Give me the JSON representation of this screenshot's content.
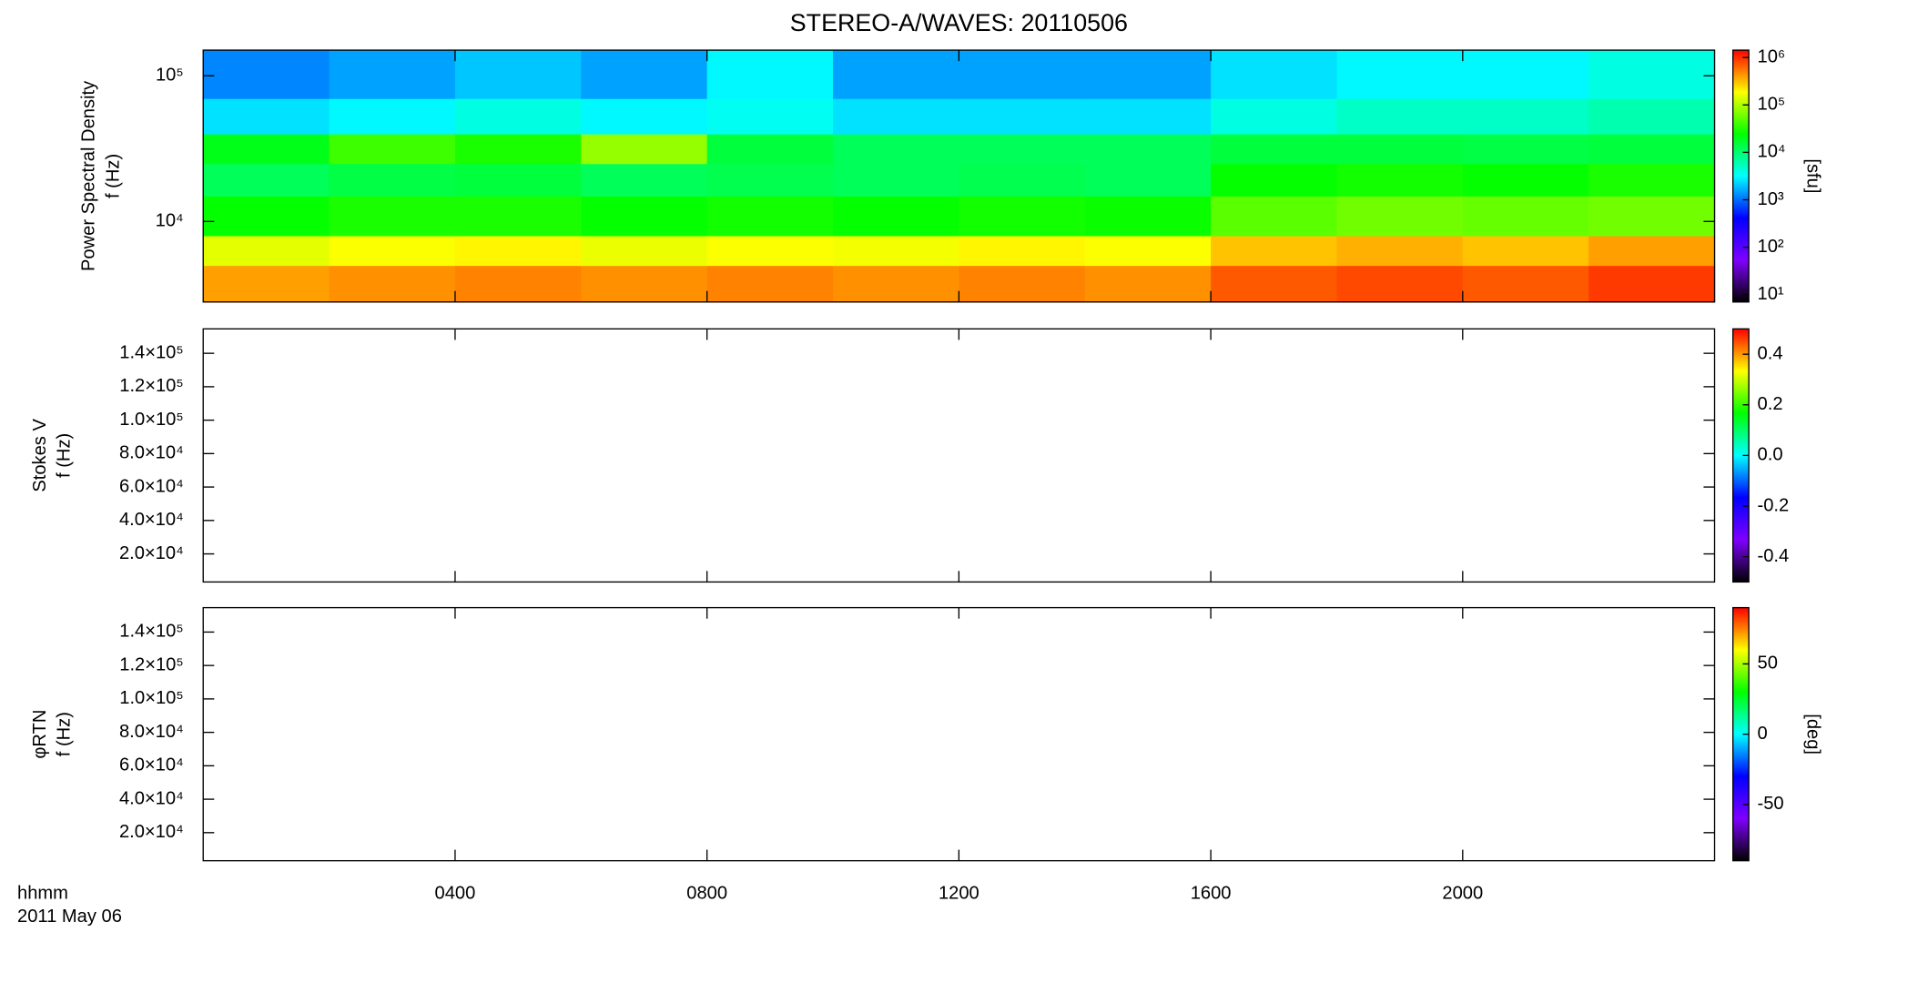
{
  "chart_data": [
    {
      "type": "heatmap",
      "title": "STEREO-A/WAVES: 20110506",
      "ylabel": [
        "Power Spectral Density",
        "f (Hz)"
      ],
      "ylog": true,
      "ylim": [
        2800,
        150000
      ],
      "yticks": [
        {
          "value": 10000,
          "label": "10⁴"
        },
        {
          "value": 100000,
          "label": "10⁵"
        }
      ],
      "xlim": [
        0,
        24
      ],
      "xticks": [
        4,
        8,
        12,
        16,
        20
      ],
      "xbins": [
        0,
        2,
        4,
        6,
        8,
        10,
        12,
        14,
        16,
        18,
        20,
        22,
        24
      ],
      "ybins": [
        2800,
        5000,
        8000,
        15000,
        25000,
        40000,
        70000,
        150000
      ],
      "z": [
        [
          400000,
          450000,
          500000,
          450000,
          500000,
          450000,
          500000,
          450000,
          700000,
          800000,
          700000,
          900000
        ],
        [
          150000,
          180000,
          200000,
          160000,
          180000,
          170000,
          200000,
          180000,
          300000,
          350000,
          300000,
          400000
        ],
        [
          25000,
          30000,
          30000,
          25000,
          28000,
          25000,
          28000,
          26000,
          50000,
          60000,
          55000,
          60000
        ],
        [
          12000,
          14000,
          15000,
          12000,
          13000,
          12000,
          13000,
          12000,
          25000,
          28000,
          25000,
          30000
        ],
        [
          20000,
          40000,
          30000,
          80000,
          15000,
          12000,
          12000,
          12000,
          15000,
          15000,
          14000,
          15000
        ],
        [
          2500,
          3000,
          4000,
          3000,
          3500,
          2500,
          2500,
          2500,
          4000,
          5000,
          5000,
          6000
        ],
        [
          1200,
          1500,
          2000,
          1500,
          3000,
          1500,
          1500,
          1500,
          2500,
          3000,
          3000,
          4000
        ]
      ],
      "clog": true,
      "clim": [
        7,
        1430000
      ],
      "cticks": [
        {
          "value": 10,
          "label": "10¹"
        },
        {
          "value": 100,
          "label": "10²"
        },
        {
          "value": 1000,
          "label": "10³"
        },
        {
          "value": 10000,
          "label": "10⁴"
        },
        {
          "value": 100000,
          "label": "10⁵"
        },
        {
          "value": 1000000,
          "label": "10⁶"
        }
      ],
      "clabel": "[sfu]",
      "colormap": [
        "#000000",
        "#7f00ff",
        "#0000ff",
        "#00ffff",
        "#00ff00",
        "#ffff00",
        "#ff0000"
      ]
    },
    {
      "type": "heatmap",
      "ylabel": [
        "Stokes V",
        "f (Hz)"
      ],
      "ylog": false,
      "ylim": [
        3200,
        154600
      ],
      "yticks": [
        {
          "value": 20000,
          "label": "2.0×10⁴"
        },
        {
          "value": 40000,
          "label": "4.0×10⁴"
        },
        {
          "value": 60000,
          "label": "6.0×10⁴"
        },
        {
          "value": 80000,
          "label": "8.0×10⁴"
        },
        {
          "value": 100000,
          "label": "1.0×10⁵"
        },
        {
          "value": 120000,
          "label": "1.2×10⁵"
        },
        {
          "value": 140000,
          "label": "1.4×10⁵"
        }
      ],
      "xlim": [
        0,
        24
      ],
      "xticks": [
        4,
        8,
        12,
        16,
        20
      ],
      "clog": false,
      "clim": [
        -0.5,
        0.5
      ],
      "cticks": [
        -0.4,
        -0.2,
        {
          "value": 0,
          "label": "0.0"
        },
        0.2,
        0.4
      ],
      "colormap": [
        "#000000",
        "#7f00ff",
        "#0000ff",
        "#00ffff",
        "#00ff00",
        "#ffff00",
        "#ff0000"
      ]
    },
    {
      "type": "heatmap",
      "ylabel": [
        "φRTN",
        "f (Hz)"
      ],
      "ylog": false,
      "ylim": [
        3200,
        154600
      ],
      "yticks": [
        {
          "value": 20000,
          "label": "2.0×10⁴"
        },
        {
          "value": 40000,
          "label": "4.0×10⁴"
        },
        {
          "value": 60000,
          "label": "6.0×10⁴"
        },
        {
          "value": 80000,
          "label": "8.0×10⁴"
        },
        {
          "value": 100000,
          "label": "1.0×10⁵"
        },
        {
          "value": 120000,
          "label": "1.2×10⁵"
        },
        {
          "value": 140000,
          "label": "1.4×10⁵"
        }
      ],
      "xlim": [
        0,
        24
      ],
      "xticks": [
        {
          "value": 4,
          "label": "0400"
        },
        {
          "value": 8,
          "label": "0800"
        },
        {
          "value": 12,
          "label": "1200"
        },
        {
          "value": 16,
          "label": "1600"
        },
        {
          "value": 20,
          "label": "2000"
        }
      ],
      "xlabel": "hhmm",
      "date": "2011 May 06",
      "clog": false,
      "clim": [
        -90,
        90
      ],
      "cticks": [
        -50,
        0,
        50
      ],
      "clabel": "[deg]",
      "colormap": [
        "#000000",
        "#7f00ff",
        "#0000ff",
        "#00ffff",
        "#00ff00",
        "#ffff00",
        "#ff0000"
      ]
    }
  ]
}
